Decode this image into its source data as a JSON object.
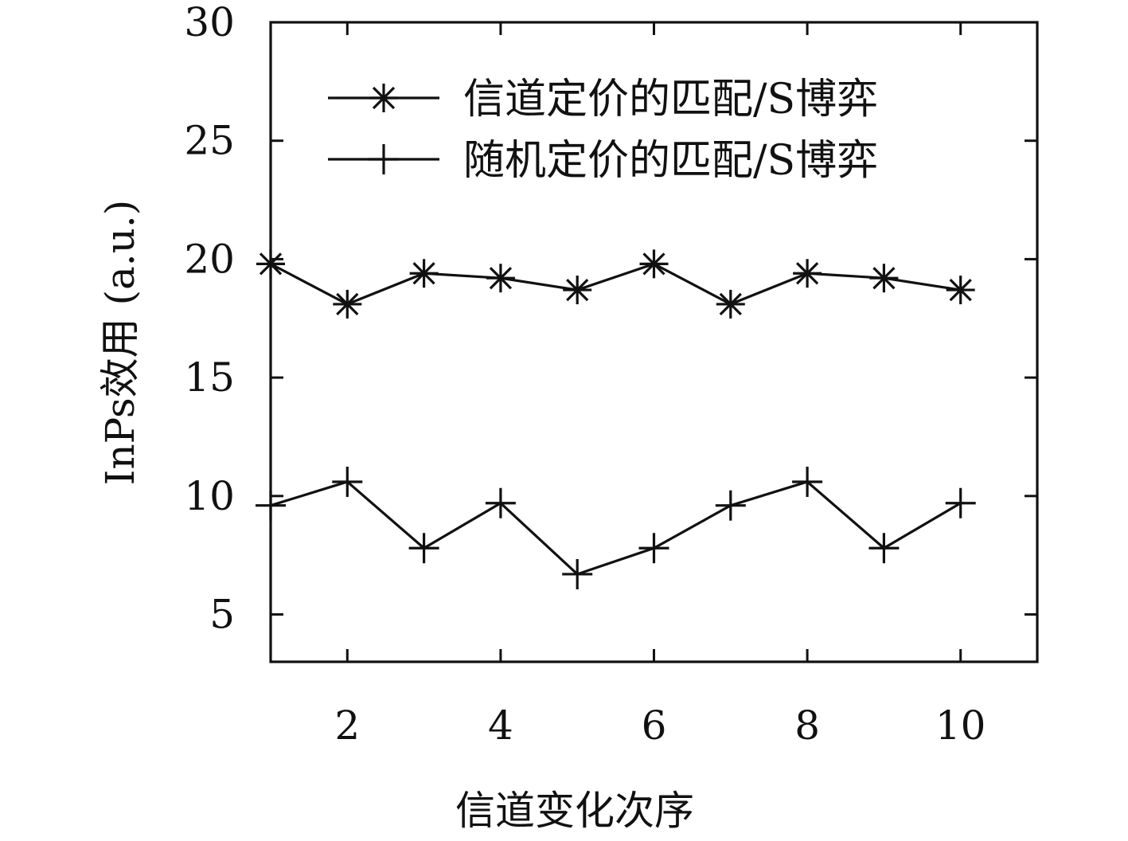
{
  "chart_data": {
    "type": "line",
    "title": "",
    "xlabel": "信道变化次序",
    "ylabel": "InPs效用 (a.u.)",
    "xlim": [
      1,
      11
    ],
    "ylim": [
      3,
      30
    ],
    "x": [
      1,
      2,
      3,
      4,
      5,
      6,
      7,
      8,
      9,
      10
    ],
    "x_ticks": [
      2,
      4,
      6,
      8,
      10
    ],
    "y_ticks": [
      5,
      10,
      15,
      20,
      25,
      30
    ],
    "grid": false,
    "legend_position": "top-right",
    "series": [
      {
        "name": "信道定价的匹配/S博弈",
        "marker": "asterisk",
        "values": [
          19.8,
          18.1,
          19.4,
          19.2,
          18.7,
          19.8,
          18.1,
          19.4,
          19.2,
          18.7
        ]
      },
      {
        "name": "随机定价的匹配/S博弈",
        "marker": "plus",
        "values": [
          9.6,
          10.6,
          7.8,
          9.7,
          6.7,
          7.8,
          9.6,
          10.6,
          7.8,
          9.7
        ]
      }
    ],
    "colors": {
      "line": "#111111",
      "frame": "#111111",
      "background": "#ffffff"
    }
  }
}
